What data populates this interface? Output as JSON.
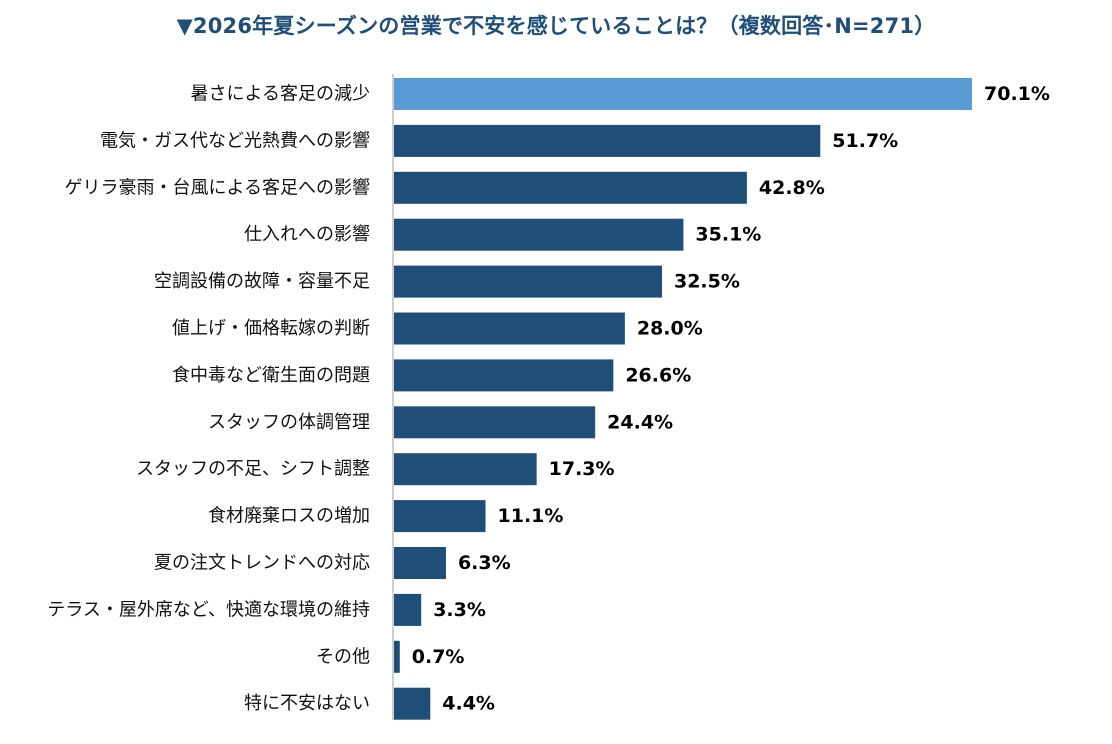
{
  "chart_data": {
    "type": "bar",
    "orientation": "horizontal",
    "title": "▼2026年夏シーズンの営業で不安を感じていることは？（複数回答･N=271）",
    "categories": [
      "暑さによる客足の減少",
      "電気・ガス代など光熱費への影響",
      "ゲリラ豪雨・台風による客足への影響",
      "仕入れへの影響",
      "空調設備の故障・容量不足",
      "値上げ・価格転嫁の判断",
      "食中毒など衛生面の問題",
      "スタッフの体調管理",
      "スタッフの不足、シフト調整",
      "食材廃棄ロスの増加",
      "夏の注文トレンドへの対応",
      "テラス・屋外席など、快適な環境の維持",
      "その他",
      "特に不安はない"
    ],
    "values": [
      70.1,
      51.7,
      42.8,
      35.1,
      32.5,
      28.0,
      26.6,
      24.4,
      17.3,
      11.1,
      6.3,
      3.3,
      0.7,
      4.4
    ],
    "value_labels": [
      "70.1%",
      "51.7%",
      "42.8%",
      "35.1%",
      "32.5%",
      "28.0%",
      "26.6%",
      "24.4%",
      "17.3%",
      "11.1%",
      "6.3%",
      "3.3%",
      "0.7%",
      "4.4%"
    ],
    "highlight_index": 0,
    "colors": {
      "highlight": "#5b9bd5",
      "bar": "#1f4e79",
      "axis": "#bfbfbf",
      "title": "#1f4e79"
    },
    "xlim": [
      0,
      70.1
    ],
    "grid": false,
    "legend": "none"
  }
}
